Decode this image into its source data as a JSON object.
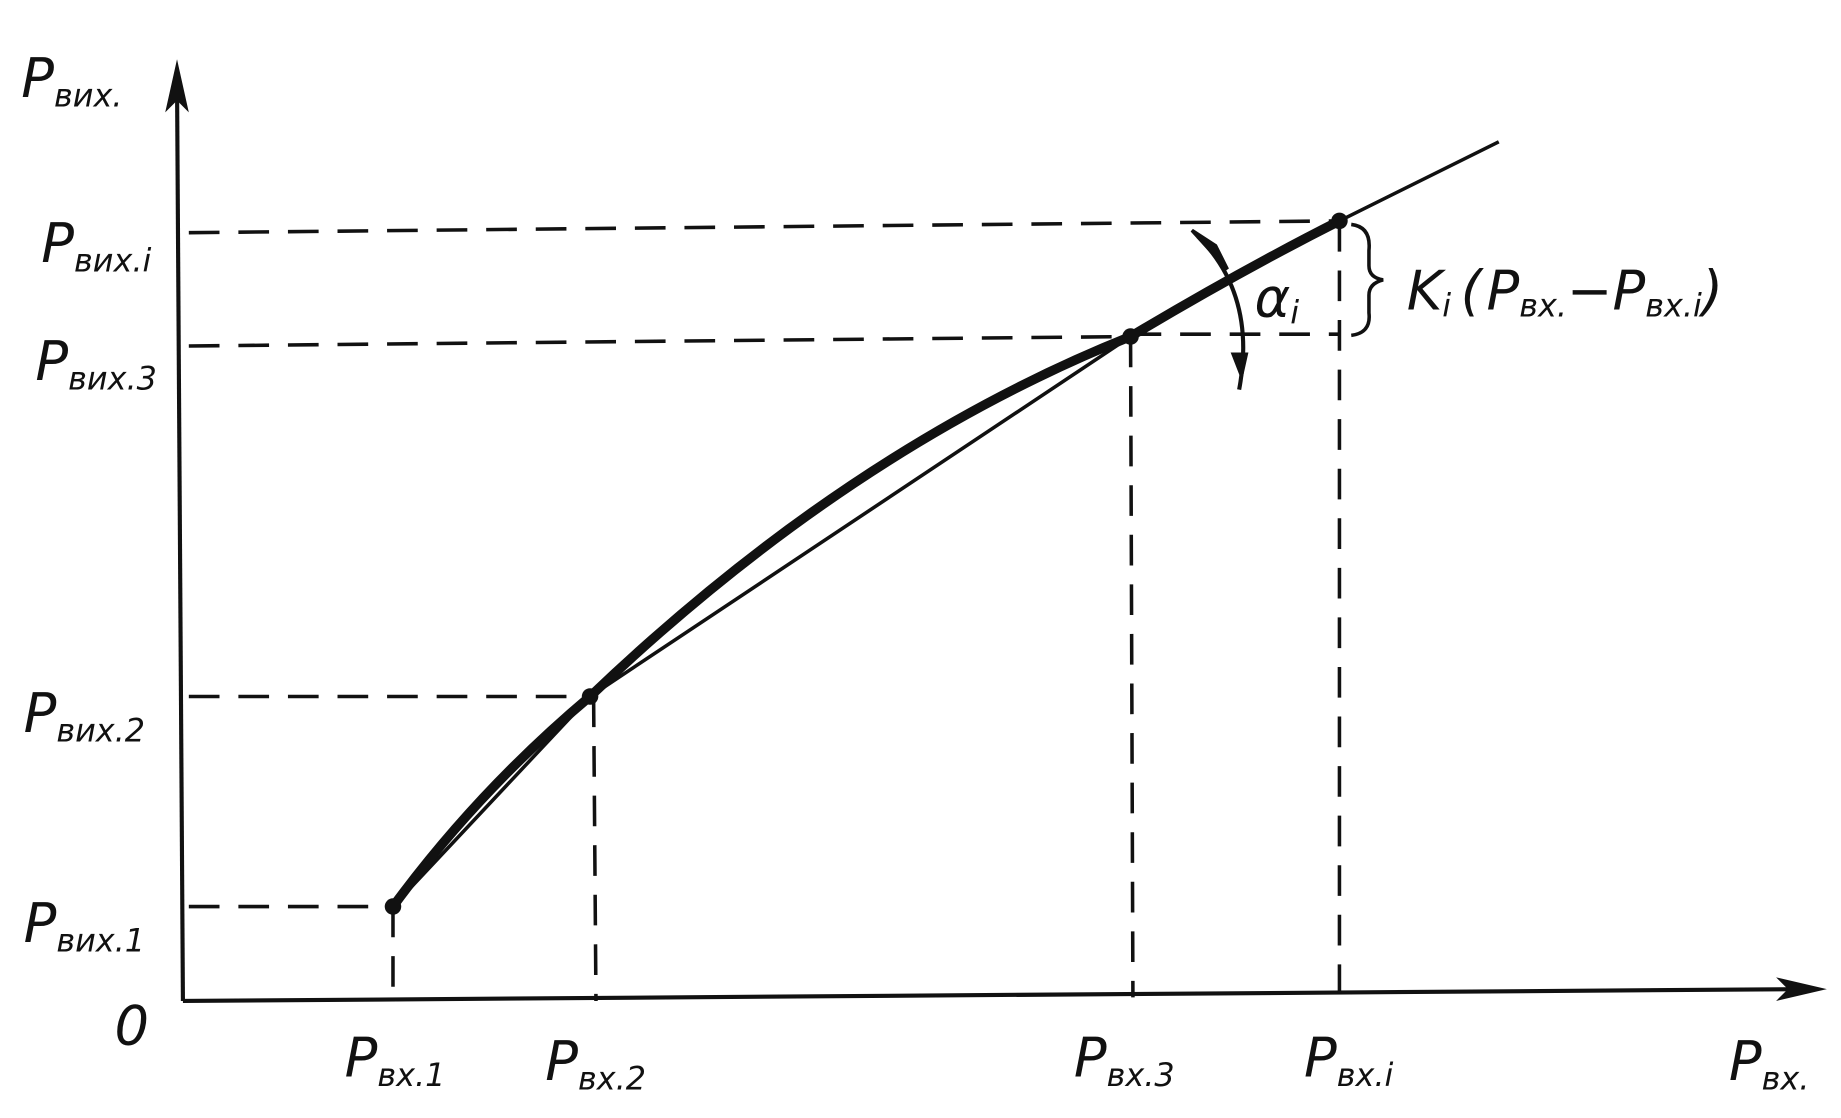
{
  "axes": {
    "y": {
      "symbol": "P",
      "subscript": "вих."
    },
    "x": {
      "symbol": "P",
      "subscript": "вх."
    },
    "origin": "0"
  },
  "y_labels": [
    {
      "symbol": "P",
      "subscript": "вих.1"
    },
    {
      "symbol": "P",
      "subscript": "вих.2"
    },
    {
      "symbol": "P",
      "subscript": "вих.3"
    },
    {
      "symbol": "P",
      "subscript": "вих.i"
    }
  ],
  "x_labels": [
    {
      "symbol": "P",
      "subscript": "вх.1"
    },
    {
      "symbol": "P",
      "subscript": "вх.2"
    },
    {
      "symbol": "P",
      "subscript": "вх.3"
    },
    {
      "symbol": "P",
      "subscript": "вх.i"
    }
  ],
  "angle_label": {
    "symbol": "α",
    "subscript": "i"
  },
  "increment_label": {
    "symbol": "K",
    "index": "i",
    "open": "(",
    "term1": {
      "symbol": "P",
      "subscript": "вх."
    },
    "minus": "−",
    "term2": {
      "symbol": "P",
      "subscript": "вх.i"
    },
    "close": ")"
  }
}
